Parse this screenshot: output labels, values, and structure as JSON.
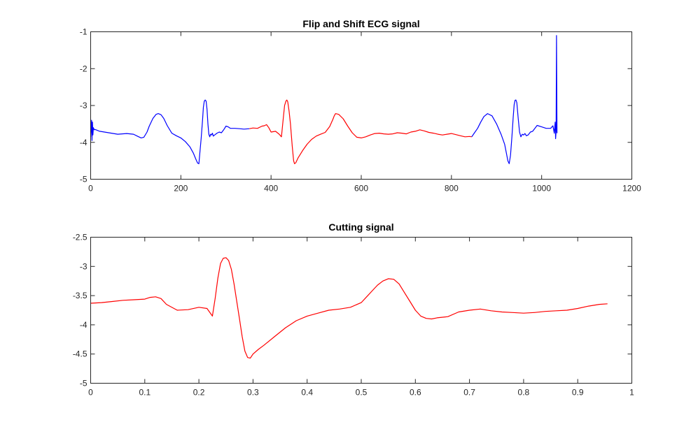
{
  "figure": {
    "background": "#ffffff"
  },
  "chart_data": [
    {
      "type": "line",
      "title": "Flip and Shift ECG signal",
      "xlabel": "",
      "ylabel": "",
      "xlim": [
        0,
        1200
      ],
      "ylim": [
        -5,
        -1
      ],
      "xticks": [
        0,
        200,
        400,
        600,
        800,
        1000,
        1200
      ],
      "xtick_labels": [
        "0",
        "200",
        "400",
        "600",
        "800",
        "1000",
        "1200"
      ],
      "yticks": [
        -5,
        -4,
        -3,
        -2,
        -1
      ],
      "ytick_labels": [
        "-5",
        "-4",
        "-3",
        "-2",
        "-1"
      ],
      "grid": false,
      "series": [
        {
          "color": "#0000ff",
          "x": [
            0,
            2,
            3,
            4,
            5,
            6,
            8,
            10,
            20,
            40,
            60,
            80,
            95,
            105,
            112,
            118,
            125,
            130,
            138,
            145,
            150,
            156,
            162,
            170,
            180,
            190,
            200,
            210,
            220,
            228,
            233,
            237,
            240,
            242,
            245,
            248,
            250,
            252,
            254,
            256,
            258,
            260,
            262,
            264,
            266,
            268,
            270,
            272,
            275,
            280,
            285,
            290,
            295,
            300,
            305,
            310,
            320,
            330,
            340,
            352
          ],
          "y": [
            -3.85,
            -3.4,
            -3.95,
            -3.45,
            -3.8,
            -3.6,
            -3.66,
            -3.65,
            -3.7,
            -3.74,
            -3.78,
            -3.76,
            -3.78,
            -3.84,
            -3.88,
            -3.86,
            -3.72,
            -3.56,
            -3.35,
            -3.24,
            -3.22,
            -3.25,
            -3.35,
            -3.55,
            -3.75,
            -3.82,
            -3.88,
            -3.98,
            -4.12,
            -4.3,
            -4.45,
            -4.56,
            -4.58,
            -4.3,
            -3.9,
            -3.4,
            -3.05,
            -2.88,
            -2.85,
            -2.88,
            -3.1,
            -3.5,
            -3.78,
            -3.85,
            -3.78,
            -3.8,
            -3.75,
            -3.83,
            -3.8,
            -3.75,
            -3.72,
            -3.74,
            -3.66,
            -3.56,
            -3.58,
            -3.62,
            -3.62,
            -3.63,
            -3.64,
            -3.63
          ]
        },
        {
          "color": "#ff0000",
          "x": [
            352,
            360,
            370,
            380,
            385,
            390,
            395,
            400,
            410,
            418,
            423,
            425,
            427,
            430,
            433,
            435,
            437,
            440,
            443,
            447,
            450,
            452,
            455,
            460,
            470,
            480,
            490,
            500,
            510,
            520,
            530,
            537,
            540,
            543,
            550,
            560,
            570,
            580,
            590,
            600,
            610,
            620,
            630,
            640,
            650,
            660,
            670,
            680,
            690,
            700,
            710,
            720,
            730,
            740,
            750,
            760,
            770,
            780,
            790,
            800,
            810,
            820,
            830,
            840,
            845
          ],
          "y": [
            -3.63,
            -3.61,
            -3.62,
            -3.56,
            -3.55,
            -3.52,
            -3.6,
            -3.72,
            -3.7,
            -3.78,
            -3.85,
            -3.6,
            -3.35,
            -3.0,
            -2.88,
            -2.85,
            -2.9,
            -3.15,
            -3.5,
            -4.1,
            -4.5,
            -4.58,
            -4.55,
            -4.42,
            -4.22,
            -4.05,
            -3.92,
            -3.83,
            -3.78,
            -3.73,
            -3.57,
            -3.38,
            -3.28,
            -3.22,
            -3.24,
            -3.36,
            -3.56,
            -3.74,
            -3.86,
            -3.88,
            -3.85,
            -3.8,
            -3.76,
            -3.75,
            -3.77,
            -3.78,
            -3.77,
            -3.74,
            -3.75,
            -3.77,
            -3.72,
            -3.7,
            -3.66,
            -3.69,
            -3.73,
            -3.75,
            -3.78,
            -3.8,
            -3.78,
            -3.76,
            -3.79,
            -3.82,
            -3.85,
            -3.84,
            -3.85
          ]
        },
        {
          "color": "#0000ff",
          "x": [
            845,
            850,
            858,
            865,
            872,
            880,
            890,
            900,
            910,
            918,
            922,
            925,
            928,
            931,
            934,
            937,
            939,
            941,
            943,
            945,
            948,
            951,
            954,
            957,
            960,
            963,
            966,
            970,
            975,
            980,
            990,
            1000,
            1010,
            1020,
            1025,
            1028,
            1030,
            1031,
            1032,
            1033,
            1034
          ],
          "y": [
            -3.85,
            -3.76,
            -3.62,
            -3.45,
            -3.3,
            -3.22,
            -3.28,
            -3.5,
            -3.78,
            -4.05,
            -4.3,
            -4.5,
            -4.58,
            -4.35,
            -3.85,
            -3.3,
            -2.98,
            -2.86,
            -2.85,
            -2.92,
            -3.35,
            -3.72,
            -3.85,
            -3.78,
            -3.8,
            -3.76,
            -3.82,
            -3.8,
            -3.72,
            -3.7,
            -3.54,
            -3.58,
            -3.62,
            -3.62,
            -3.55,
            -3.75,
            -3.45,
            -3.9,
            -3.7,
            -1.1,
            -3.75
          ]
        }
      ]
    },
    {
      "type": "line",
      "title": "Cutting signal",
      "xlabel": "",
      "ylabel": "",
      "xlim": [
        0,
        1
      ],
      "ylim": [
        -5,
        -2.5
      ],
      "xticks": [
        0,
        0.1,
        0.2,
        0.3,
        0.4,
        0.5,
        0.6,
        0.7,
        0.8,
        0.9,
        1
      ],
      "xtick_labels": [
        "0",
        "0.1",
        "0.2",
        "0.3",
        "0.4",
        "0.5",
        "0.6",
        "0.7",
        "0.8",
        "0.9",
        "1"
      ],
      "yticks": [
        -5,
        -4.5,
        -4,
        -3.5,
        -3,
        -2.5
      ],
      "ytick_labels": [
        "-5",
        "-4.5",
        "-4",
        "-3.5",
        "-3",
        "-2.5"
      ],
      "grid": false,
      "series": [
        {
          "color": "#ff0000",
          "x": [
            0,
            0.02,
            0.04,
            0.06,
            0.08,
            0.1,
            0.11,
            0.12,
            0.13,
            0.14,
            0.16,
            0.18,
            0.2,
            0.215,
            0.225,
            0.23,
            0.235,
            0.24,
            0.245,
            0.25,
            0.255,
            0.26,
            0.265,
            0.27,
            0.275,
            0.28,
            0.285,
            0.29,
            0.295,
            0.3,
            0.31,
            0.32,
            0.34,
            0.36,
            0.38,
            0.4,
            0.42,
            0.44,
            0.46,
            0.48,
            0.5,
            0.51,
            0.52,
            0.53,
            0.54,
            0.55,
            0.56,
            0.57,
            0.58,
            0.59,
            0.6,
            0.61,
            0.62,
            0.63,
            0.64,
            0.66,
            0.68,
            0.7,
            0.72,
            0.74,
            0.76,
            0.78,
            0.8,
            0.82,
            0.84,
            0.86,
            0.88,
            0.9,
            0.92,
            0.94,
            0.955
          ],
          "y": [
            -3.63,
            -3.62,
            -3.6,
            -3.58,
            -3.57,
            -3.56,
            -3.53,
            -3.52,
            -3.55,
            -3.65,
            -3.75,
            -3.74,
            -3.7,
            -3.72,
            -3.85,
            -3.55,
            -3.2,
            -2.95,
            -2.86,
            -2.85,
            -2.9,
            -3.05,
            -3.3,
            -3.6,
            -3.9,
            -4.2,
            -4.45,
            -4.56,
            -4.57,
            -4.5,
            -4.42,
            -4.35,
            -4.2,
            -4.05,
            -3.93,
            -3.85,
            -3.8,
            -3.75,
            -3.73,
            -3.7,
            -3.62,
            -3.52,
            -3.42,
            -3.32,
            -3.25,
            -3.21,
            -3.22,
            -3.3,
            -3.45,
            -3.6,
            -3.75,
            -3.85,
            -3.89,
            -3.9,
            -3.88,
            -3.86,
            -3.78,
            -3.75,
            -3.73,
            -3.76,
            -3.78,
            -3.79,
            -3.8,
            -3.79,
            -3.77,
            -3.76,
            -3.75,
            -3.72,
            -3.68,
            -3.65,
            -3.64
          ]
        }
      ]
    }
  ]
}
